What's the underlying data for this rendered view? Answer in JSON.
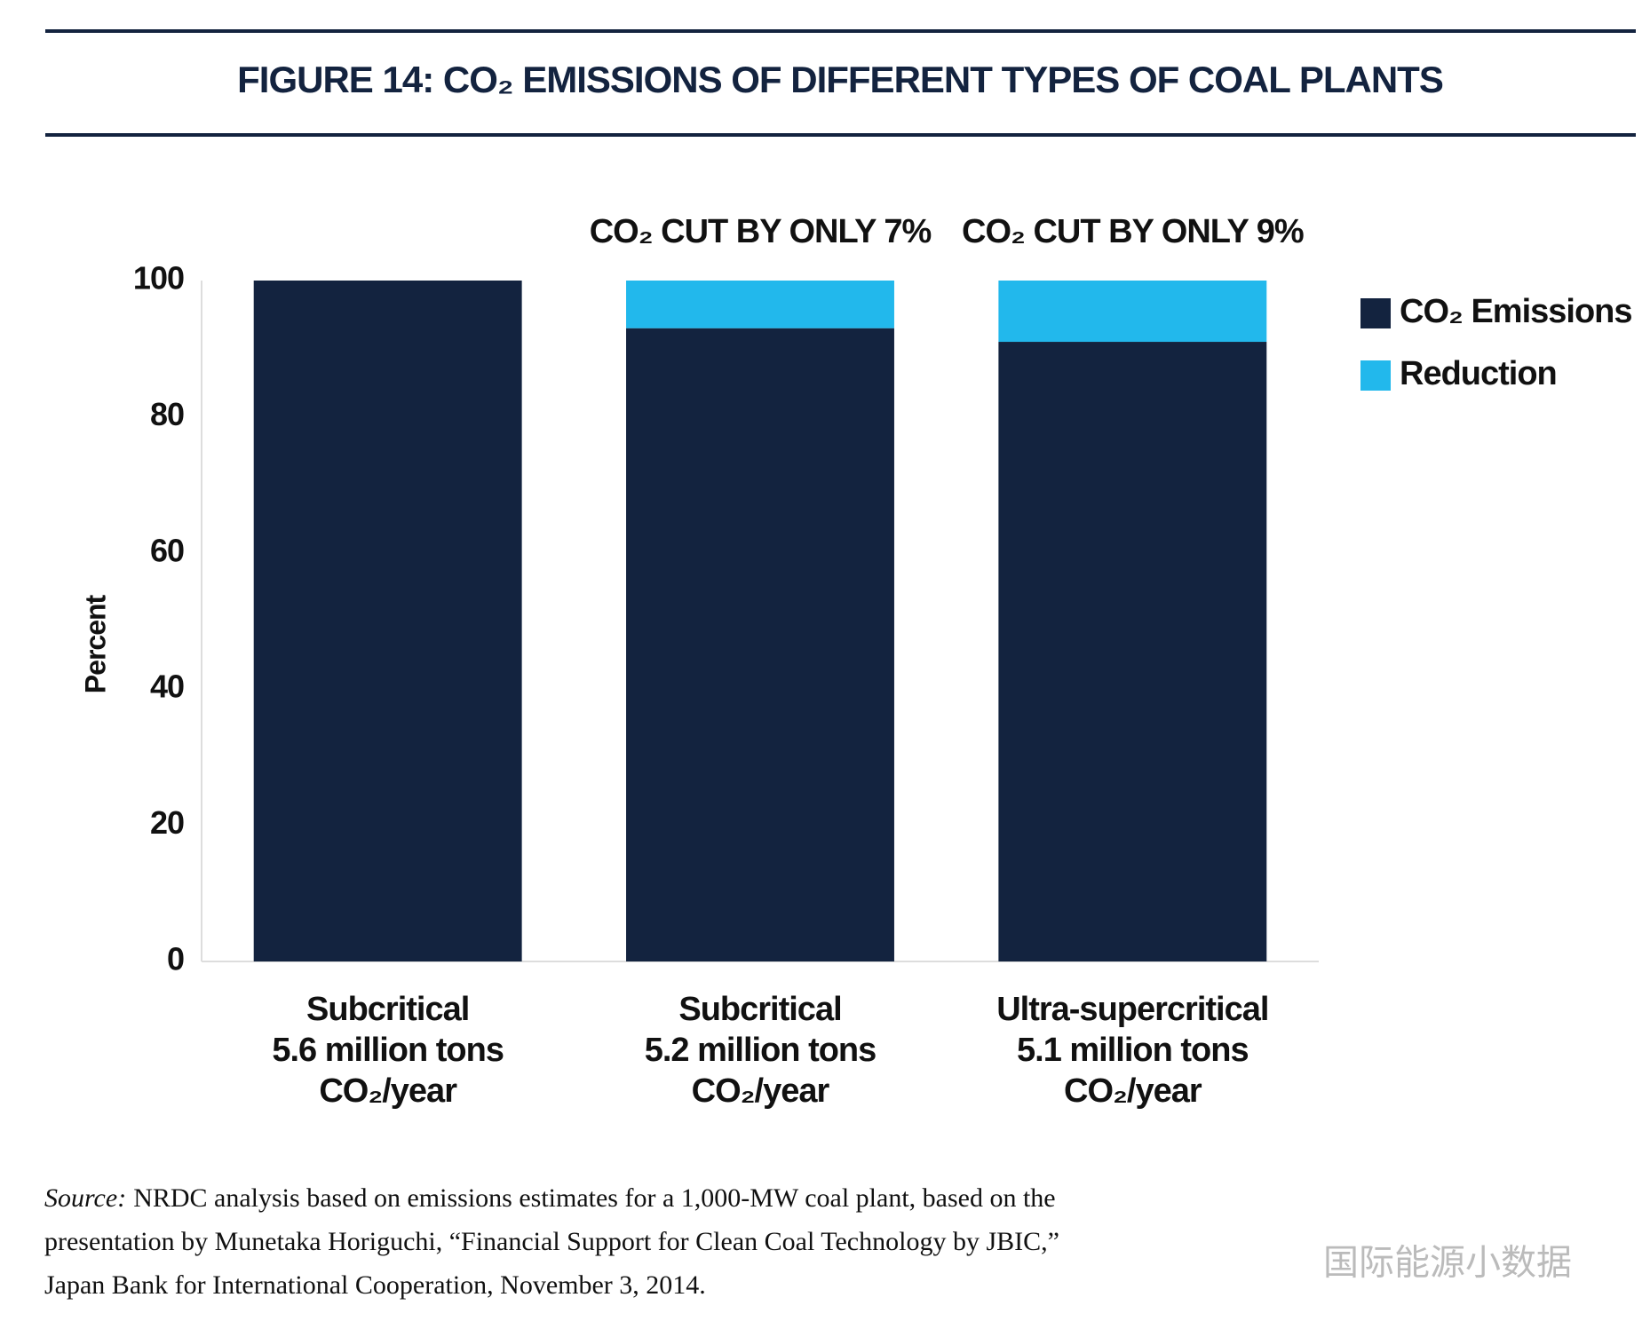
{
  "chart_data": {
    "type": "stacked_bar",
    "title": "FIGURE 14: CO₂ EMISSIONS OF DIFFERENT TYPES OF COAL PLANTS",
    "y_label": "Percent",
    "categories": [
      [
        "Subcritical",
        "5.6 million tons",
        "CO₂/year"
      ],
      [
        "Subcritical",
        "5.2 million tons",
        "CO₂/year"
      ],
      [
        "Ultra-supercritical",
        "5.1 million tons",
        "CO₂/year"
      ]
    ],
    "annotations": [
      null,
      "CO₂ CUT BY ONLY 7%",
      "CO₂ CUT BY ONLY 9%"
    ],
    "series": [
      {
        "name": "CO₂ Emissions",
        "color": "#13233f",
        "values": [
          100,
          93,
          91
        ]
      },
      {
        "name": "Reduction",
        "color": "#22b8ec",
        "values": [
          0,
          7,
          9
        ]
      }
    ],
    "ylim": [
      0,
      100
    ],
    "yticks": [
      0,
      20,
      40,
      60,
      80,
      100
    ],
    "grid": false,
    "legend": "right"
  },
  "source_label": "Source:",
  "source_lines": [
    "NRDC analysis based on emissions estimates for a 1,000-MW coal plant, based on the",
    "presentation by Munetaka Horiguchi, “Financial Support for Clean Coal Technology by JBIC,”",
    "Japan Bank for International Cooperation, November 3, 2014."
  ],
  "watermark": "国际能源小数据"
}
